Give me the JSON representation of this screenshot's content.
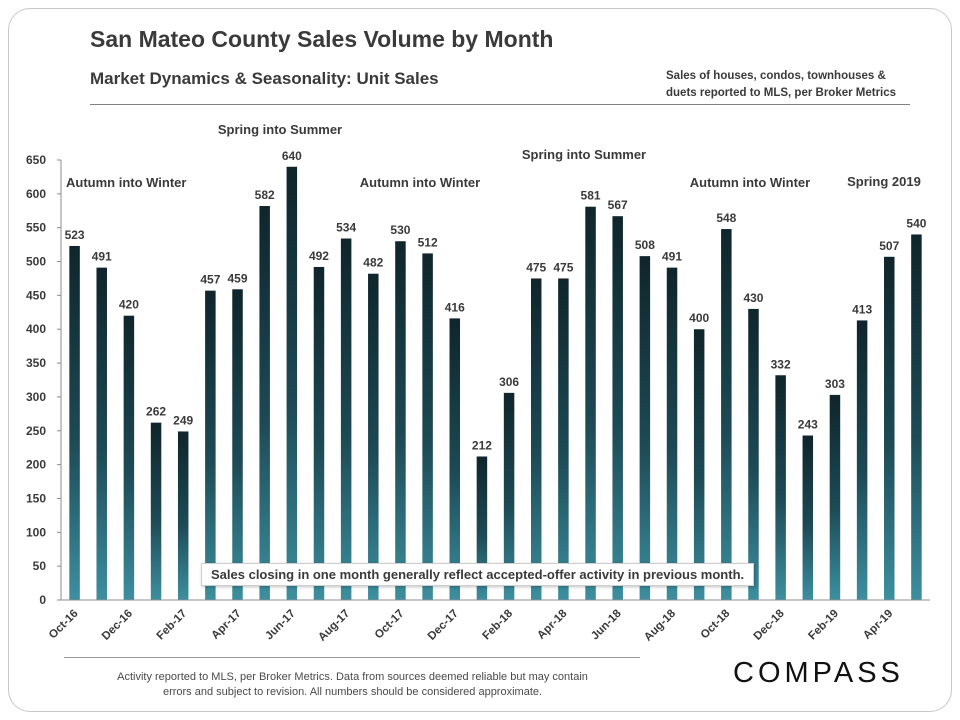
{
  "header": {
    "title": "San Mateo County Sales Volume by Month",
    "subtitle": "Market Dynamics  & Seasonality:  Unit Sales",
    "note_line1": "Sales of houses,  condos,  townhouses &",
    "note_line2": "duets reported to MLS, per Broker Metrics"
  },
  "callout": "Sales closing in one month generally reflect accepted-offer activity in previous month.",
  "footer": {
    "line1": "Activity reported to MLS, per Broker Metrics. Data from sources deemed  reliable but may contain",
    "line2": "errors and subject to revision. All numbers should be considered approximate."
  },
  "logo": "COMPASS",
  "colors": {
    "bar_top": "#0f252b",
    "bar_bottom": "#3d8f9f",
    "text": "#3a3a3a",
    "axis": "#8c8c8c"
  },
  "chart_data": {
    "type": "bar",
    "title": "San Mateo County Sales Volume by Month",
    "xlabel": "",
    "ylabel": "",
    "ylim": [
      0,
      650
    ],
    "yticks": [
      0,
      50,
      100,
      150,
      200,
      250,
      300,
      350,
      400,
      450,
      500,
      550,
      600,
      650
    ],
    "grid": false,
    "categories": [
      "Oct-16",
      "Nov-16",
      "Dec-16",
      "Jan-17",
      "Feb-17",
      "Mar-17",
      "Apr-17",
      "May-17",
      "Jun-17",
      "Jul-17",
      "Aug-17",
      "Sep-17",
      "Oct-17",
      "Nov-17",
      "Dec-17",
      "Jan-18",
      "Feb-18",
      "Mar-18",
      "Apr-18",
      "May-18",
      "Jun-18",
      "Jul-18",
      "Aug-18",
      "Sep-18",
      "Oct-18",
      "Nov-18",
      "Dec-18",
      "Jan-19",
      "Feb-19",
      "Mar-19",
      "Apr-19",
      "May-19"
    ],
    "xtick_labels": [
      "Oct-16",
      "",
      "Dec-16",
      "",
      "Feb-17",
      "",
      "Apr-17",
      "",
      "Jun-17",
      "",
      "Aug-17",
      "",
      "Oct-17",
      "",
      "Dec-17",
      "",
      "Feb-18",
      "",
      "Apr-18",
      "",
      "Jun-18",
      "",
      "Aug-18",
      "",
      "Oct-18",
      "",
      "Dec-18",
      "",
      "Feb-19",
      "",
      "Apr-19",
      ""
    ],
    "values": [
      523,
      491,
      420,
      262,
      249,
      457,
      459,
      582,
      640,
      492,
      534,
      482,
      530,
      512,
      416,
      212,
      306,
      475,
      475,
      581,
      567,
      508,
      491,
      400,
      548,
      430,
      332,
      243,
      303,
      413,
      507,
      540
    ],
    "annotations": [
      {
        "text": "Autumn into Winter",
        "x": "Oct-16"
      },
      {
        "text": "Spring into Summer",
        "x": "May-17"
      },
      {
        "text": "Autumn into Winter",
        "x": "Oct-17"
      },
      {
        "text": "Spring into Summer",
        "x": "Apr-18"
      },
      {
        "text": "Autumn into Winter",
        "x": "Sep-18"
      },
      {
        "text": "Spring 2019",
        "x": "Apr-19"
      }
    ]
  }
}
